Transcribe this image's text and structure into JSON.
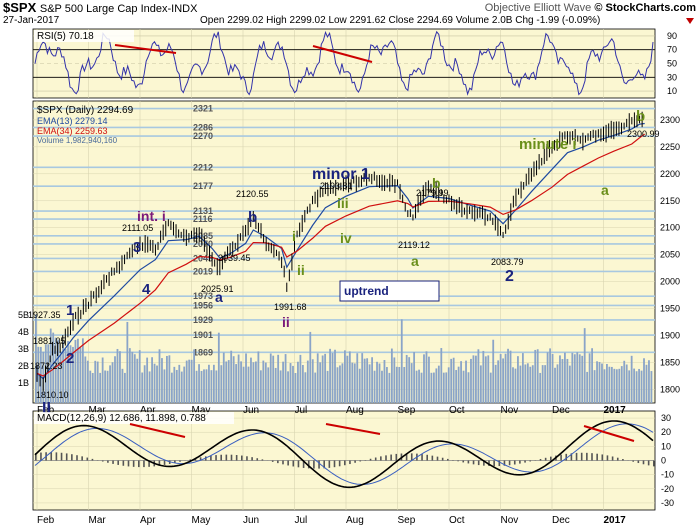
{
  "header": {
    "symbol": "$SPX",
    "name": "S&P 500 Large Cap Index",
    "exchange": "INDX",
    "source": "© StockCharts.com",
    "date": "27-Jan-2017",
    "ohlc": "Open 2299.02  High 2299.02  Low 2291.62  Close 2294.69  Volume 2.0B  Chg -1.99 (-0.09%)",
    "watermark": "Objective Elliott Wave"
  },
  "colors": {
    "background": "#fbf7d2",
    "rsi_line": "#3333aa",
    "price_bars": "#000000",
    "ema13": "#1f4aa0",
    "ema34": "#d01010",
    "volume": "#8aa4c8",
    "level_lines": "#a8c8e0",
    "wave_blue": "#1a237e",
    "wave_green": "#6a8f1a",
    "wave_purple": "#7a1a7a",
    "annotation_red": "#cc0000"
  },
  "chart_data": [
    {
      "type": "line",
      "title": "RSI(5) 70.18",
      "ylim": [
        0,
        100
      ],
      "y_ticks": [
        "90",
        "70",
        "50",
        "30",
        "10"
      ],
      "upper_band": 70,
      "lower_band": 30,
      "mid_band": 50
    },
    {
      "type": "line",
      "title": "$SPX (Daily) 2294.69",
      "legend": [
        "EMA(13) 2279.14",
        "EMA(34) 2259.63",
        "Volume 1,982,940,160"
      ],
      "ylim": [
        1775,
        2335
      ],
      "y_ticks": [
        "2300",
        "2250",
        "2200",
        "2150",
        "2100",
        "2050",
        "2000",
        "1950",
        "1900",
        "1850",
        "1800"
      ],
      "volume_ticks": [
        "5B",
        "4B",
        "3B",
        "2B",
        "1B"
      ],
      "x_ticks": [
        "Feb",
        "Mar",
        "Apr",
        "May",
        "Jun",
        "Jul",
        "Aug",
        "Sep",
        "Oct",
        "Nov",
        "Dec",
        "2017"
      ],
      "levels": [
        "2321",
        "2286",
        "2270",
        "2212",
        "2177",
        "2131",
        "2116",
        "2085",
        "2070",
        "2043",
        "2019",
        "1973",
        "1956",
        "1929",
        "1901",
        "1869"
      ],
      "level_values": [
        2321,
        2286,
        2270,
        2212,
        2177,
        2131,
        2116,
        2085,
        2070,
        2043,
        2019,
        1973,
        1956,
        1929,
        1901,
        1869
      ],
      "price_points": [
        {
          "month": 0.0,
          "value": 1830
        },
        {
          "month": 0.12,
          "value": 1810.1
        },
        {
          "month": 0.3,
          "value": 1872.23
        },
        {
          "month": 0.45,
          "value": 1881.05
        },
        {
          "month": 0.7,
          "value": 1927.35
        },
        {
          "month": 1.0,
          "value": 1960
        },
        {
          "month": 1.5,
          "value": 2020
        },
        {
          "month": 2.0,
          "value": 2070
        },
        {
          "month": 2.3,
          "value": 2060
        },
        {
          "month": 2.55,
          "value": 2111.05
        },
        {
          "month": 2.9,
          "value": 2080
        },
        {
          "month": 3.15,
          "value": 2090
        },
        {
          "month": 3.4,
          "value": 2039.45
        },
        {
          "month": 3.55,
          "value": 2025.91
        },
        {
          "month": 3.75,
          "value": 2060
        },
        {
          "month": 4.05,
          "value": 2090
        },
        {
          "month": 4.2,
          "value": 2120.55
        },
        {
          "month": 4.45,
          "value": 2070
        },
        {
          "month": 4.75,
          "value": 2040
        },
        {
          "month": 4.85,
          "value": 1991.68
        },
        {
          "month": 5.05,
          "value": 2090
        },
        {
          "month": 5.35,
          "value": 2150
        },
        {
          "month": 5.6,
          "value": 2170
        },
        {
          "month": 6.0,
          "value": 2180
        },
        {
          "month": 6.45,
          "value": 2193.81
        },
        {
          "month": 7.0,
          "value": 2180
        },
        {
          "month": 7.2,
          "value": 2130
        },
        {
          "month": 7.3,
          "value": 2119.12
        },
        {
          "month": 7.6,
          "value": 2179.99
        },
        {
          "month": 8.0,
          "value": 2150
        },
        {
          "month": 8.4,
          "value": 2130
        },
        {
          "month": 8.8,
          "value": 2120
        },
        {
          "month": 9.05,
          "value": 2083.79
        },
        {
          "month": 9.3,
          "value": 2160
        },
        {
          "month": 9.6,
          "value": 2200
        },
        {
          "month": 10.0,
          "value": 2250
        },
        {
          "month": 10.3,
          "value": 2270
        },
        {
          "month": 10.6,
          "value": 2260
        },
        {
          "month": 10.9,
          "value": 2275
        },
        {
          "month": 11.2,
          "value": 2280
        },
        {
          "month": 11.55,
          "value": 2295
        },
        {
          "month": 11.7,
          "value": 2300.99
        },
        {
          "month": 11.8,
          "value": 2294.69
        }
      ],
      "price_labels": [
        "1810.10",
        "1872.23",
        "1881.05",
        "1927.35",
        "2111.05",
        "2039.45",
        "2025.91",
        "2120.55",
        "1991.68",
        "2193.81",
        "2179.99",
        "2119.12",
        "2083.79",
        "2300.99"
      ],
      "wave_labels": [
        "1",
        "2",
        "3",
        "4",
        "a",
        "b",
        "int. i",
        "ii",
        "i",
        "ii",
        "iii",
        "iv",
        "minor 1",
        "a",
        "b",
        "2",
        "minute i",
        "a",
        "b",
        "II"
      ],
      "trend_box": "uptrend"
    },
    {
      "type": "line",
      "title": "MACD(12,26,9) 12.686, 11.898, 0.788",
      "ylim": [
        -35,
        35
      ],
      "y_ticks": [
        "30",
        "20",
        "10",
        "0",
        "-10",
        "-20",
        "-30"
      ],
      "x_ticks": [
        "Feb",
        "Mar",
        "Apr",
        "May",
        "Jun",
        "Jul",
        "Aug",
        "Sep",
        "Oct",
        "Nov",
        "Dec",
        "2017"
      ]
    }
  ]
}
